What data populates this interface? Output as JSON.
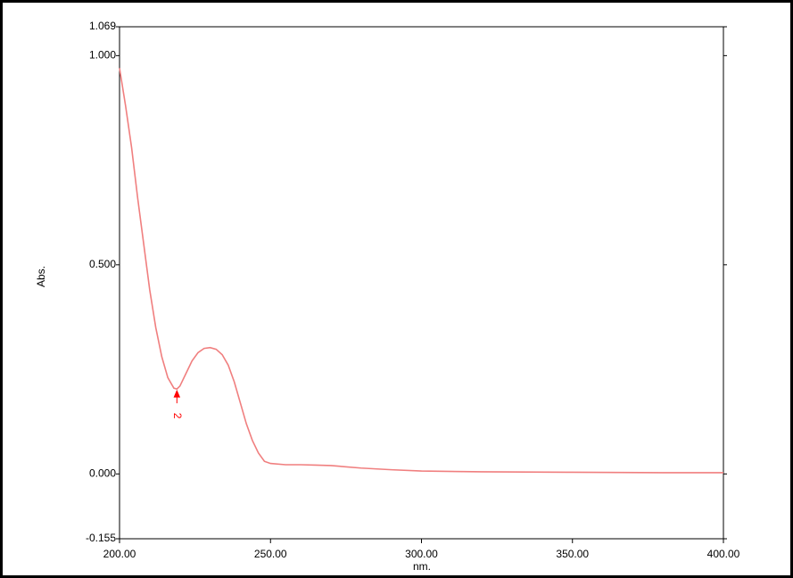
{
  "chart_data": {
    "type": "line",
    "x_label": "nm.",
    "y_label": "Abs.",
    "xlim": [
      200,
      400
    ],
    "xticks": [
      {
        "value": 200,
        "label": "200.00"
      },
      {
        "value": 250,
        "label": "250.00"
      },
      {
        "value": 300,
        "label": "300.00"
      },
      {
        "value": 350,
        "label": "350.00"
      },
      {
        "value": 400,
        "label": "400.00"
      }
    ],
    "ylim": [
      -0.155,
      1.069
    ],
    "yticks": [
      {
        "value": -0.155,
        "label": "-0.155"
      },
      {
        "value": 0,
        "label": "0.000"
      },
      {
        "value": 0.5,
        "label": "0.500"
      },
      {
        "value": 1,
        "label": "1.000"
      },
      {
        "value": 1.069,
        "label": "1.069"
      }
    ],
    "x": [
      200,
      202,
      204,
      206,
      208,
      210,
      212,
      214,
      216,
      218,
      219,
      220,
      222,
      224,
      226,
      228,
      230,
      232,
      234,
      236,
      238,
      240,
      242,
      244,
      246,
      248,
      250,
      255,
      260,
      265,
      270,
      280,
      290,
      300,
      320,
      350,
      380,
      400
    ],
    "series": [
      {
        "color": "#f07f7f",
        "values": [
          0.97,
          0.88,
          0.78,
          0.66,
          0.55,
          0.44,
          0.35,
          0.28,
          0.23,
          0.205,
          0.203,
          0.21,
          0.24,
          0.27,
          0.29,
          0.3,
          0.302,
          0.298,
          0.285,
          0.26,
          0.22,
          0.17,
          0.12,
          0.08,
          0.05,
          0.03,
          0.025,
          0.022,
          0.022,
          0.021,
          0.02,
          0.014,
          0.01,
          0.007,
          0.005,
          0.004,
          0.003,
          0.003
        ]
      }
    ],
    "peaks": [
      {
        "label": "2",
        "x": 219,
        "y": 0.203,
        "color": "#ff0000"
      }
    ]
  }
}
